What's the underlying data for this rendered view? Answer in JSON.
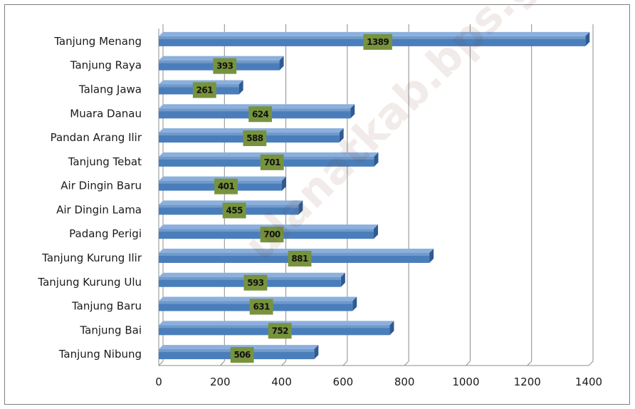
{
  "chart_data": {
    "type": "bar",
    "orientation": "horizontal",
    "categories": [
      "Tanjung Menang",
      "Tanjung Raya",
      "Talang Jawa",
      "Muara Danau",
      "Pandan Arang Ilir",
      "Tanjung Tebat",
      "Air Dingin Baru",
      "Air Dingin Lama",
      "Padang Perigi",
      "Tanjung Kurung Ilir",
      "Tanjung Kurung Ulu",
      "Tanjung Baru",
      "Tanjung Bai",
      "Tanjung Nibung"
    ],
    "values": [
      1389,
      393,
      261,
      624,
      588,
      701,
      401,
      455,
      700,
      881,
      593,
      631,
      752,
      506
    ],
    "xlim": [
      0,
      1400
    ],
    "xticks": [
      0,
      200,
      400,
      600,
      800,
      1000,
      1200,
      1400
    ],
    "grid": "vertical",
    "legend": "none",
    "title": "",
    "xlabel": "",
    "ylabel": ""
  },
  "colors": {
    "bar_front": "#4a7ebb",
    "bar_top": "#8cb0de",
    "bar_side": "#2f5a92",
    "label_box": "#77933c",
    "grid": "#8c8c8c"
  },
  "watermark": "ulanatkab.bps.go.id"
}
